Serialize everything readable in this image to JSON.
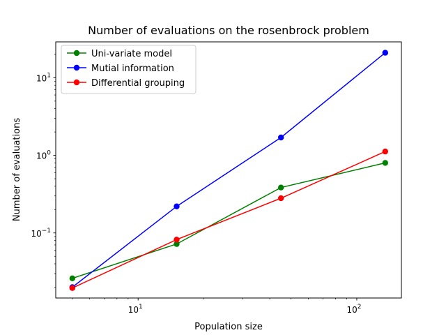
{
  "chart_data": {
    "type": "line",
    "title": "Number of evaluations on the rosenbrock problem",
    "xlabel": "Population size",
    "ylabel": "Number of evaluations",
    "xscale": "log",
    "yscale": "log",
    "xlim": [
      4.2,
      160
    ],
    "ylim": [
      0.0145,
      29
    ],
    "xticks": [
      {
        "value": 10,
        "base": "10",
        "exp": "1"
      },
      {
        "value": 100,
        "base": "10",
        "exp": "2"
      }
    ],
    "yticks": [
      {
        "value": 0.1,
        "base": "10",
        "exp": "−1"
      },
      {
        "value": 1,
        "base": "10",
        "exp": "0"
      },
      {
        "value": 10,
        "base": "10",
        "exp": "1"
      }
    ],
    "grid": false,
    "legend_position": "top-left",
    "x": [
      5,
      15,
      45,
      135
    ],
    "series": [
      {
        "name": "Uni-variate model",
        "color": "#008000",
        "values": [
          0.026,
          0.072,
          0.385,
          0.8
        ]
      },
      {
        "name": "Mutial information",
        "color": "#0000ff",
        "values": [
          0.02,
          0.22,
          1.7,
          21
        ]
      },
      {
        "name": "Differential grouping",
        "color": "#ff0000",
        "values": [
          0.0195,
          0.082,
          0.28,
          1.12
        ]
      }
    ]
  }
}
